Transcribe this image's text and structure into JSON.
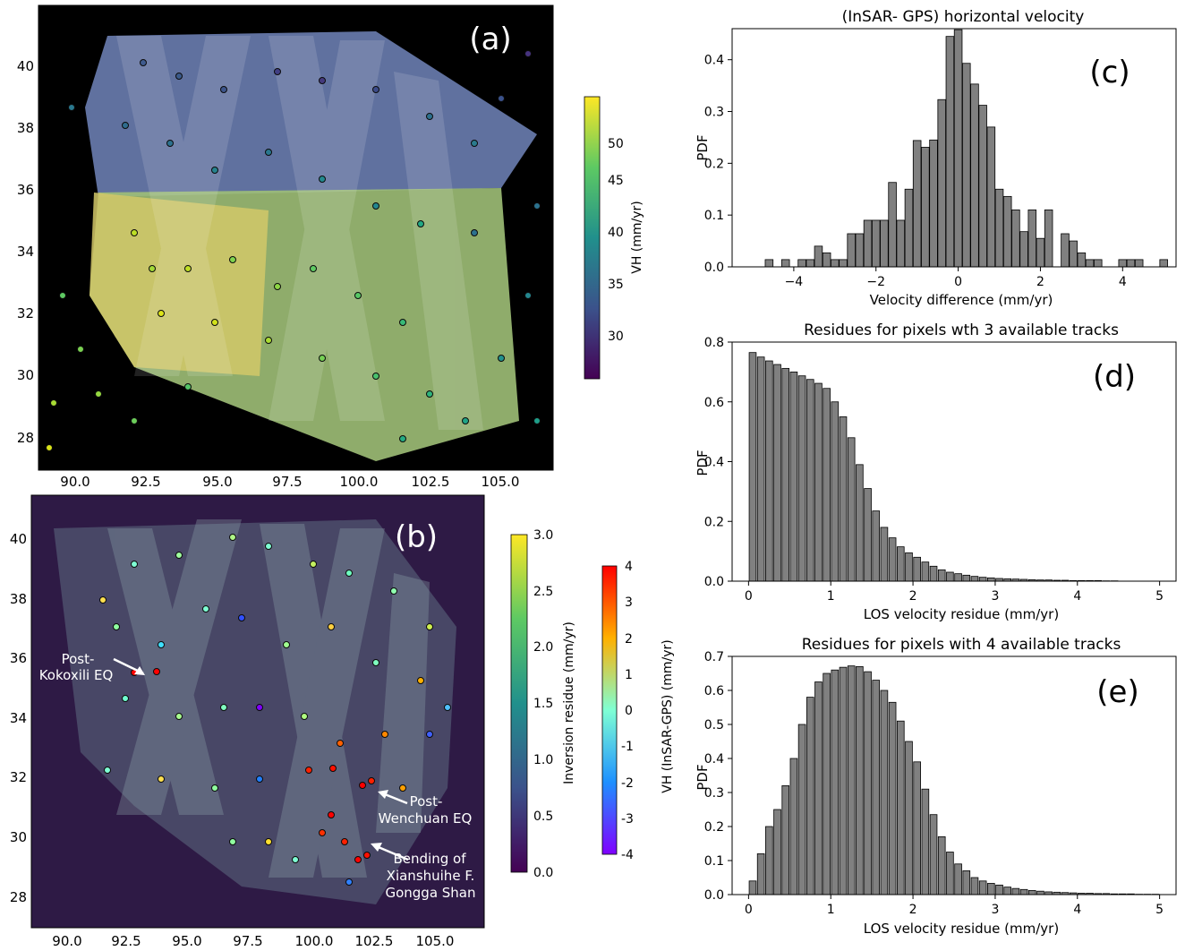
{
  "panels": {
    "a": {
      "label": "(a)",
      "x_ticks": [
        "90.0",
        "92.5",
        "95.0",
        "97.5",
        "100.0",
        "102.5",
        "105.0"
      ],
      "y_ticks": [
        "28",
        "30",
        "32",
        "34",
        "36",
        "38",
        "40"
      ],
      "colorbar": {
        "label": "VH (mm/yr)",
        "ticks": [
          "30",
          "35",
          "40",
          "45",
          "50"
        ],
        "colormap": "viridis"
      }
    },
    "b": {
      "label": "(b)",
      "x_ticks": [
        "90.0",
        "92.5",
        "95.0",
        "97.5",
        "100.0",
        "102.5",
        "105.0"
      ],
      "y_ticks": [
        "28",
        "30",
        "32",
        "34",
        "36",
        "38",
        "40"
      ],
      "colorbar_residue": {
        "label": "Inversion residue (mm/yr)",
        "ticks": [
          "0.0",
          "0.5",
          "1.0",
          "1.5",
          "2.0",
          "2.5",
          "3.0"
        ],
        "colormap": "viridis"
      },
      "colorbar_diff": {
        "label": "VH (InSAR-GPS) (mm/yr)",
        "ticks": [
          "-4",
          "-3",
          "-2",
          "-1",
          "0",
          "1",
          "2",
          "3",
          "4"
        ],
        "colormap": "rainbow"
      },
      "annotations": {
        "kokoxili": [
          "Post-",
          "Kokoxili EQ"
        ],
        "wenchuan": [
          "Post-",
          "Wenchuan EQ"
        ],
        "xianshuihe": [
          "Bending of",
          "Xianshuihe F.",
          "Gongga Shan"
        ]
      }
    }
  },
  "chart_data": [
    {
      "id": "c",
      "type": "bar",
      "panel_label": "(c)",
      "title": "(InSAR- GPS) horizontal velocity",
      "xlabel": "Velocity difference (mm/yr)",
      "ylabel": "PDF",
      "xlim": [
        -5.5,
        5.3
      ],
      "ylim": [
        0,
        0.46
      ],
      "x_ticks": [
        -4,
        -2,
        0,
        2,
        4
      ],
      "y_ticks": [
        0.0,
        0.1,
        0.2,
        0.3,
        0.4
      ],
      "tick_labels_x": [
        "−4",
        "−2",
        "0",
        "2",
        "4"
      ],
      "tick_labels_y": [
        "0.0",
        "0.1",
        "0.2",
        "0.3",
        "0.4"
      ],
      "bar_width": 0.19,
      "x": [
        -4.6,
        -4.4,
        -4.2,
        -4.0,
        -3.8,
        -3.6,
        -3.4,
        -3.2,
        -3.0,
        -2.8,
        -2.6,
        -2.4,
        -2.2,
        -2.0,
        -1.8,
        -1.6,
        -1.4,
        -1.2,
        -1.0,
        -0.8,
        -0.6,
        -0.4,
        -0.2,
        0.0,
        0.2,
        0.4,
        0.6,
        0.8,
        1.0,
        1.2,
        1.4,
        1.6,
        1.8,
        2.0,
        2.2,
        2.4,
        2.6,
        2.8,
        3.0,
        3.2,
        3.4,
        3.6,
        3.8,
        4.0,
        4.2,
        4.4,
        4.6,
        4.8,
        5.0
      ],
      "values": [
        0.014,
        0.0,
        0.014,
        0.0,
        0.014,
        0.014,
        0.04,
        0.027,
        0.014,
        0.014,
        0.064,
        0.064,
        0.09,
        0.09,
        0.09,
        0.163,
        0.09,
        0.15,
        0.244,
        0.231,
        0.245,
        0.323,
        0.445,
        0.458,
        0.393,
        0.353,
        0.312,
        0.27,
        0.15,
        0.136,
        0.11,
        0.068,
        0.11,
        0.055,
        0.11,
        0.0,
        0.064,
        0.05,
        0.027,
        0.014,
        0.014,
        0.0,
        0.0,
        0.014,
        0.014,
        0.014,
        0.0,
        0.0,
        0.014
      ],
      "color": "#808080"
    },
    {
      "id": "d",
      "type": "bar",
      "panel_label": "(d)",
      "title": "Residues for pixels wth 3 available tracks",
      "xlabel": "LOS velocity residue (mm/yr)",
      "ylabel": "PDF",
      "xlim": [
        -0.2,
        5.2
      ],
      "ylim": [
        0,
        0.8
      ],
      "x_ticks": [
        0,
        1,
        2,
        3,
        4,
        5
      ],
      "y_ticks": [
        0.0,
        0.2,
        0.4,
        0.6,
        0.8
      ],
      "tick_labels_x": [
        "0",
        "1",
        "2",
        "3",
        "4",
        "5"
      ],
      "tick_labels_y": [
        "0.0",
        "0.2",
        "0.4",
        "0.6",
        "0.8"
      ],
      "bar_width": 0.085,
      "x": [
        0.05,
        0.15,
        0.25,
        0.35,
        0.45,
        0.55,
        0.65,
        0.75,
        0.85,
        0.95,
        1.05,
        1.15,
        1.25,
        1.35,
        1.45,
        1.55,
        1.65,
        1.75,
        1.85,
        1.95,
        2.05,
        2.15,
        2.25,
        2.35,
        2.45,
        2.55,
        2.65,
        2.75,
        2.85,
        2.95,
        3.05,
        3.15,
        3.25,
        3.35,
        3.45,
        3.55,
        3.65,
        3.75,
        3.85,
        3.95,
        4.05,
        4.15,
        4.25,
        4.35,
        4.45
      ],
      "values": [
        0.765,
        0.75,
        0.737,
        0.725,
        0.712,
        0.7,
        0.687,
        0.675,
        0.662,
        0.645,
        0.6,
        0.55,
        0.48,
        0.39,
        0.31,
        0.235,
        0.18,
        0.145,
        0.115,
        0.095,
        0.08,
        0.064,
        0.05,
        0.038,
        0.03,
        0.025,
        0.02,
        0.016,
        0.013,
        0.011,
        0.009,
        0.008,
        0.007,
        0.006,
        0.005,
        0.004,
        0.004,
        0.003,
        0.003,
        0.002,
        0.002,
        0.002,
        0.002,
        0.001,
        0.001
      ],
      "color": "#808080"
    },
    {
      "id": "e",
      "type": "bar",
      "panel_label": "(e)",
      "title": "Residues for pixels with 4 available tracks",
      "xlabel": "LOS velocity residue (mm/yr)",
      "ylabel": "PDF",
      "xlim": [
        -0.2,
        5.2
      ],
      "ylim": [
        0,
        0.7
      ],
      "x_ticks": [
        0,
        1,
        2,
        3,
        4,
        5
      ],
      "y_ticks": [
        0.0,
        0.1,
        0.2,
        0.3,
        0.4,
        0.5,
        0.6,
        0.7
      ],
      "tick_labels_x": [
        "0",
        "1",
        "2",
        "3",
        "4",
        "5"
      ],
      "tick_labels_y": [
        "0.0",
        "0.1",
        "0.2",
        "0.3",
        "0.4",
        "0.5",
        "0.6",
        "0.7"
      ],
      "bar_width": 0.085,
      "x": [
        0.05,
        0.15,
        0.25,
        0.35,
        0.45,
        0.55,
        0.65,
        0.75,
        0.85,
        0.95,
        1.05,
        1.15,
        1.25,
        1.35,
        1.45,
        1.55,
        1.65,
        1.75,
        1.85,
        1.95,
        2.05,
        2.15,
        2.25,
        2.35,
        2.45,
        2.55,
        2.65,
        2.75,
        2.85,
        2.95,
        3.05,
        3.15,
        3.25,
        3.35,
        3.45,
        3.55,
        3.65,
        3.75,
        3.85,
        3.95,
        4.05,
        4.15,
        4.25,
        4.35,
        4.45,
        4.55,
        4.65,
        4.75,
        4.85,
        4.95
      ],
      "values": [
        0.04,
        0.12,
        0.2,
        0.25,
        0.32,
        0.4,
        0.5,
        0.58,
        0.625,
        0.65,
        0.66,
        0.668,
        0.672,
        0.67,
        0.655,
        0.63,
        0.6,
        0.565,
        0.51,
        0.45,
        0.39,
        0.31,
        0.235,
        0.17,
        0.125,
        0.09,
        0.07,
        0.05,
        0.04,
        0.033,
        0.028,
        0.022,
        0.018,
        0.015,
        0.012,
        0.01,
        0.008,
        0.007,
        0.006,
        0.005,
        0.004,
        0.004,
        0.003,
        0.003,
        0.002,
        0.002,
        0.002,
        0.001,
        0.001,
        0.001
      ],
      "color": "#808080"
    }
  ]
}
